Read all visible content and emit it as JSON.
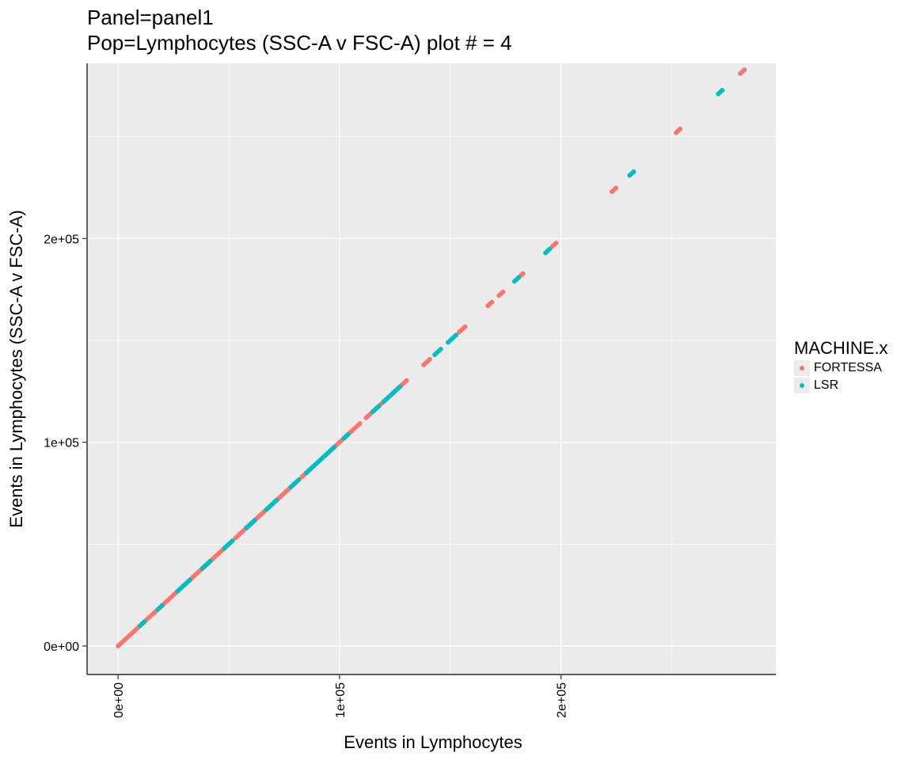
{
  "chart_data": {
    "type": "scatter",
    "title": "Panel=panel1",
    "subtitle": "Pop=Lymphocytes (SSC-A v FSC-A) plot # = 4",
    "xlabel": "Events in Lymphocytes",
    "ylabel": "Events in Lymphocytes (SSC-A v FSC-A)",
    "xlim": [
      -14000,
      297000
    ],
    "ylim": [
      -14000,
      286000
    ],
    "x_ticks": [
      0,
      100000,
      200000
    ],
    "x_tick_labels": [
      "0e+00",
      "1e+05",
      "2e+05"
    ],
    "y_ticks": [
      0,
      100000,
      200000
    ],
    "y_tick_labels": [
      "0e+00",
      "1e+05",
      "2e+05"
    ],
    "grid": true,
    "legend": {
      "title": "MACHINE.x",
      "position": "right"
    },
    "series": [
      {
        "name": "FORTESSA",
        "color": "#F8766D",
        "segments": [
          [
            0,
            30000
          ],
          [
            32000,
            50000
          ],
          [
            53000,
            80000
          ],
          [
            83000,
            89000
          ],
          [
            93000,
            110000
          ],
          [
            112000,
            122000
          ],
          [
            124000,
            131000
          ],
          [
            138000,
            141000
          ],
          [
            154000,
            157000
          ],
          [
            167000,
            169000
          ],
          [
            172000,
            174000
          ],
          [
            181000,
            183000
          ],
          [
            196000,
            198000
          ],
          [
            223000,
            225000
          ],
          [
            252000,
            254000
          ],
          [
            281000,
            283000
          ]
        ]
      },
      {
        "name": "LSR",
        "color": "#00BFC4",
        "segments": [
          [
            10000,
            12000
          ],
          [
            18000,
            20000
          ],
          [
            27000,
            33000
          ],
          [
            38000,
            42000
          ],
          [
            48000,
            52000
          ],
          [
            58000,
            62000
          ],
          [
            67000,
            72000
          ],
          [
            78000,
            82000
          ],
          [
            85000,
            98000
          ],
          [
            102000,
            104000
          ],
          [
            115000,
            118000
          ],
          [
            120000,
            128000
          ],
          [
            143000,
            146000
          ],
          [
            149000,
            153000
          ],
          [
            179000,
            181000
          ],
          [
            193000,
            195000
          ],
          [
            231000,
            233000
          ],
          [
            271000,
            273000
          ]
        ]
      }
    ]
  }
}
